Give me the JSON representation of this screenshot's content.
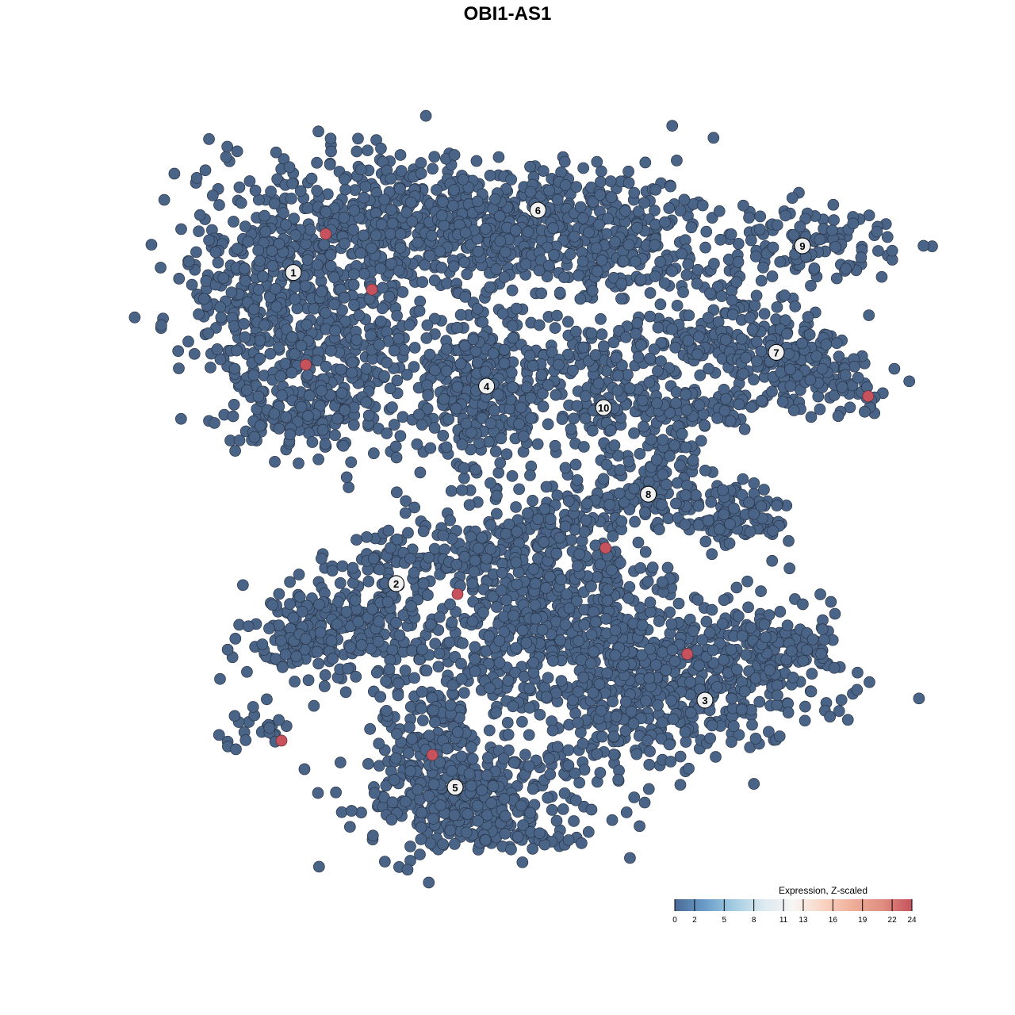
{
  "chart_data": {
    "type": "scatter",
    "title": "OBI1-AS1",
    "xlabel": "",
    "ylabel": "",
    "xlim": [
      -37,
      42
    ],
    "ylim": [
      -40,
      38
    ],
    "grid": false,
    "point_color": "#4a6487",
    "point_stroke": "#2a3547",
    "clusters": [
      {
        "label": "1",
        "center": [
          -22.5,
          24.7
        ],
        "blobs": [
          [
            -22,
            25,
            6.5,
            5.5,
            420
          ],
          [
            -19,
            16,
            5,
            4.5,
            220
          ],
          [
            -9,
            30,
            8,
            3.8,
            320
          ],
          [
            -27,
            19,
            2.5,
            4.5,
            90
          ],
          [
            -20,
            9,
            4,
            2,
            90
          ]
        ]
      },
      {
        "label": "2",
        "center": [
          -11.7,
          -8
        ],
        "blobs": [
          [
            -17,
            -12,
            5,
            3,
            220
          ],
          [
            -10,
            -6,
            4,
            2,
            90
          ],
          [
            -22,
            -13,
            2.5,
            2,
            60
          ]
        ]
      },
      {
        "label": "3",
        "center": [
          20.75,
          -20.25
        ],
        "blobs": [
          [
            22,
            -18,
            6,
            3.5,
            320
          ],
          [
            13,
            -19,
            3.5,
            5,
            220
          ],
          [
            28,
            -14,
            3,
            2,
            90
          ]
        ]
      },
      {
        "label": "4",
        "center": [
          -2.2,
          12.75
        ],
        "blobs": [
          [
            -2.2,
            12.5,
            4.3,
            4.3,
            380
          ]
        ]
      },
      {
        "label": "5",
        "center": [
          -5.5,
          -29.4
        ],
        "blobs": [
          [
            -3,
            -31,
            6,
            3,
            350
          ],
          [
            -8,
            -25,
            3,
            4,
            160
          ]
        ]
      },
      {
        "label": "6",
        "center": [
          3.2,
          31.25
        ],
        "blobs": [
          [
            3,
            30,
            9,
            3.3,
            380
          ],
          [
            12,
            26,
            5,
            3,
            130
          ]
        ]
      },
      {
        "label": "7",
        "center": [
          28.25,
          16.3
        ],
        "blobs": [
          [
            22,
            18,
            5,
            2.3,
            160
          ],
          [
            30,
            15,
            4,
            2,
            130
          ],
          [
            36,
            12,
            2,
            1.5,
            35
          ]
        ]
      },
      {
        "label": "8",
        "center": [
          14.8,
          1.4
        ],
        "blobs": [
          [
            13,
            1,
            4,
            2,
            90
          ],
          [
            17,
            6,
            1.8,
            4,
            90
          ],
          [
            24,
            -1,
            3,
            1.8,
            110
          ],
          [
            20,
            10,
            5,
            1.3,
            70
          ]
        ]
      },
      {
        "label": "9",
        "center": [
          31,
          27.5
        ],
        "blobs": [
          [
            31,
            27.5,
            5,
            2.3,
            130
          ]
        ]
      },
      {
        "label": "10",
        "center": [
          10.1,
          10.5
        ],
        "blobs": [
          [
            10,
            11,
            2.5,
            3,
            80
          ],
          [
            8,
            16,
            3.5,
            1.3,
            50
          ]
        ]
      },
      {
        "label": "",
        "center": null,
        "blobs": [
          [
            3,
            -12,
            7,
            5.5,
            520
          ],
          [
            4,
            -4,
            5,
            2.5,
            160
          ],
          [
            -25,
            -23,
            2.2,
            1.4,
            25
          ]
        ]
      }
    ],
    "highlighted_points": [
      [
        -19.1,
        28.75
      ],
      [
        -14.25,
        22.9
      ],
      [
        -21.2,
        15
      ],
      [
        37.9,
        11.7
      ],
      [
        10.3,
        -4.25
      ],
      [
        -5.25,
        -9.1
      ],
      [
        18.9,
        -15.4
      ],
      [
        -23.75,
        -24.5
      ],
      [
        -7.9,
        -26
      ]
    ],
    "highlight_color": "#c6525e",
    "colorbar": {
      "title": "Expression, Z-scaled",
      "range": [
        0,
        24
      ],
      "ticks": [
        0,
        2,
        5,
        8,
        11,
        13,
        16,
        19,
        22,
        24
      ],
      "colors": [
        "#4a6a96",
        "#6a9cc9",
        "#a3cde2",
        "#dde9f1",
        "#f7f6f4",
        "#f9d4c3",
        "#eeae98",
        "#e08e80",
        "#c6525e"
      ],
      "placement": "bottom-right"
    }
  }
}
